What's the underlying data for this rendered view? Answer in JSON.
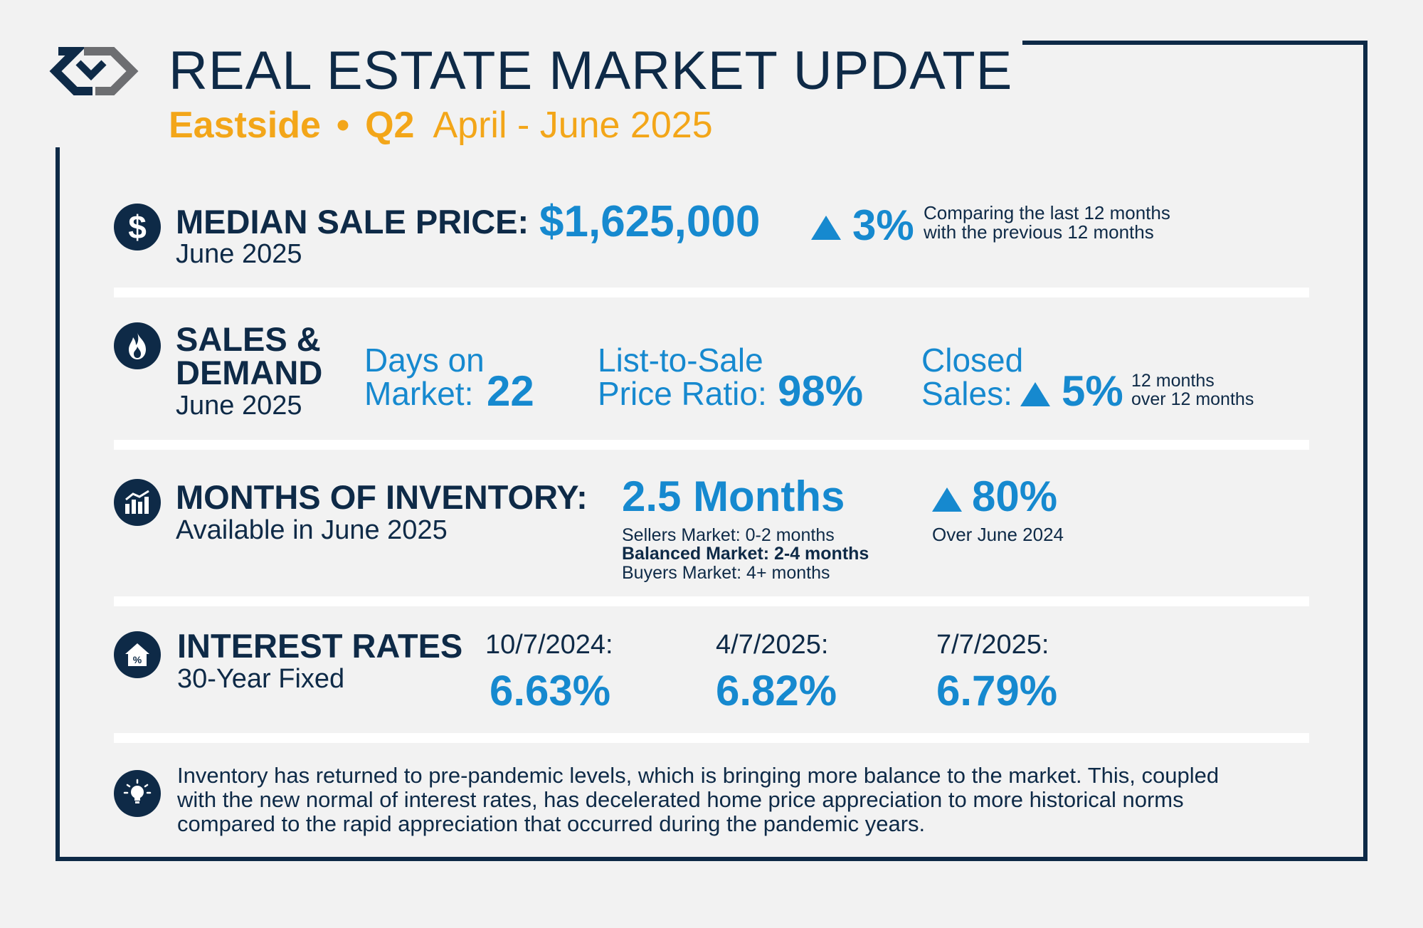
{
  "header": {
    "title": "REAL ESTATE MARKET UPDATE",
    "region": "Eastside",
    "separator": "•",
    "quarter": "Q2",
    "date_range": "April - June 2025"
  },
  "median_sale_price": {
    "label": "MEDIAN SALE PRICE:",
    "period": "June 2025",
    "value": "$1,625,000",
    "change": "3%",
    "note_line1": "Comparing the last 12 months",
    "note_line2": "with the previous 12 months"
  },
  "sales_demand": {
    "label_line1": "SALES &",
    "label_line2": "DEMAND",
    "period": "June 2025",
    "dom_label_line1": "Days on",
    "dom_label_line2": "Market:",
    "dom_value": "22",
    "ratio_label_line1": "List-to-Sale",
    "ratio_label_line2": "Price Ratio:",
    "ratio_value": "98%",
    "closed_label_line1": "Closed",
    "closed_label_line2": "Sales:",
    "closed_change": "5%",
    "closed_note_line1": "12 months",
    "closed_note_line2": "over 12 months"
  },
  "inventory": {
    "label": "MONTHS OF INVENTORY:",
    "period": "Available in June 2025",
    "value": "2.5 Months",
    "sellers": "Sellers Market: 0-2 months",
    "balanced": "Balanced Market: 2-4 months",
    "buyers": "Buyers Market: 4+ months",
    "change": "80%",
    "change_note": "Over June 2024"
  },
  "interest_rates": {
    "label": "INTEREST RATES",
    "sublabel": "30-Year Fixed",
    "rates": [
      {
        "date": "10/7/2024:",
        "value": "6.63%"
      },
      {
        "date": "4/7/2025:",
        "value": "6.82%"
      },
      {
        "date": "7/7/2025:",
        "value": "6.79%"
      }
    ]
  },
  "footer": {
    "line1": "Inventory has returned to pre-pandemic levels, which is bringing more balance to the market. This, coupled",
    "line2": "with the new normal of interest rates, has decelerated home price appreciation to more historical norms",
    "line3": "compared to the rapid appreciation that occurred during the pandemic years."
  },
  "colors": {
    "navy": "#0e2a47",
    "blue": "#1689cf",
    "gold": "#f3a619",
    "background": "#f2f2f2"
  },
  "icons": [
    "brand-logo-icon",
    "dollar-icon",
    "flame-icon",
    "bar-chart-icon",
    "house-percent-icon",
    "lightbulb-icon"
  ]
}
